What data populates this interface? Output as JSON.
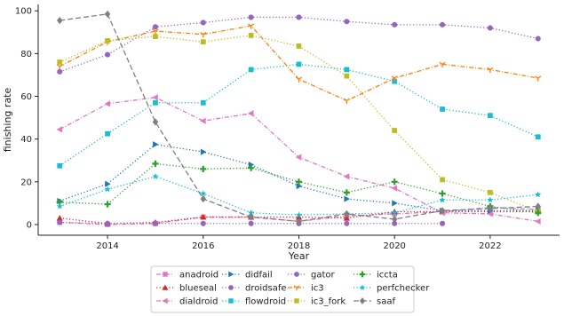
{
  "chart_data": {
    "type": "line",
    "title": "",
    "xlabel": "Year",
    "ylabel": "finishing rate",
    "xlim": [
      2012.55,
      2023.45
    ],
    "ylim": [
      -5,
      103
    ],
    "xticks": [
      2014,
      2016,
      2018,
      2020,
      2022
    ],
    "yticks": [
      0,
      20,
      40,
      60,
      80,
      100
    ],
    "x": [
      2013,
      2014,
      2015,
      2016,
      2017,
      2018,
      2019,
      2020,
      2021,
      2022,
      2023
    ],
    "grid": false,
    "legend_position": "bottom-center",
    "legend_columns": 4,
    "series": [
      {
        "name": "anadroid",
        "color": "#e377c2",
        "marker": "square",
        "linestyle": "dashdot",
        "values": [
          1,
          0,
          0.5,
          3.5,
          3.5,
          1.5,
          4,
          5,
          6,
          8,
          7
        ]
      },
      {
        "name": "blueseal",
        "color": "#d62728",
        "marker": "triangle-up",
        "linestyle": "dotted",
        "values": [
          3,
          0.5,
          1,
          3.5,
          3.5,
          3.5,
          3,
          6,
          6,
          6,
          6
        ]
      },
      {
        "name": "dialdroid",
        "color": "#e377c2",
        "marker": "triangle-left",
        "linestyle": "dashdot",
        "values": [
          44.5,
          56.5,
          59.5,
          48.5,
          52,
          31.5,
          22.5,
          17,
          5.5,
          5,
          1.5
        ]
      },
      {
        "name": "didfail",
        "color": "#1f77b4",
        "marker": "triangle-right",
        "linestyle": "dotted",
        "values": [
          11,
          19,
          37.5,
          34,
          28,
          18,
          12,
          10,
          6.5,
          6.5,
          6.5
        ]
      },
      {
        "name": "droidsafe",
        "color": "#9467bd",
        "marker": "circle",
        "linestyle": "dotted",
        "values": [
          1,
          0.5,
          0.5,
          0.5,
          0.5,
          0.5,
          0.5,
          0.5,
          0.5,
          null,
          null
        ]
      },
      {
        "name": "flowdroid",
        "color": "#17becf",
        "marker": "square",
        "linestyle": "dotted",
        "values": [
          27.5,
          42.5,
          57,
          57,
          72.5,
          75,
          72.5,
          67,
          54,
          51,
          41
        ]
      },
      {
        "name": "gator",
        "color": "#9467bd",
        "marker": "circle",
        "linestyle": "dotted",
        "values": [
          71.5,
          79.5,
          92.5,
          94.5,
          97,
          97,
          95,
          93.5,
          93.5,
          92,
          87
        ]
      },
      {
        "name": "ic3",
        "color": "#ff7f0e",
        "marker": "tri-down",
        "linestyle": "dashdot",
        "values": [
          74,
          85.5,
          90.5,
          89,
          93,
          68,
          58,
          68.5,
          75,
          72.5,
          68.5
        ]
      },
      {
        "name": "ic3_fork",
        "color": "#bcbd22",
        "marker": "square",
        "linestyle": "dotted",
        "values": [
          76,
          86,
          88,
          85.5,
          88.5,
          83.5,
          69.5,
          44,
          21,
          15,
          6
        ]
      },
      {
        "name": "iccta",
        "color": "#2ca02c",
        "marker": "plus",
        "linestyle": "dotted",
        "values": [
          10.5,
          9.5,
          28.5,
          26,
          26.5,
          20,
          15,
          20,
          14.5,
          8.5,
          5.5
        ]
      },
      {
        "name": "perfchecker",
        "color": "#17becf",
        "marker": "star",
        "linestyle": "dotted",
        "values": [
          8.5,
          16.5,
          22.5,
          14.5,
          5.5,
          4.5,
          5,
          5.5,
          11.5,
          11.5,
          14
        ]
      },
      {
        "name": "saaf",
        "color": "#7f7f7f",
        "marker": "diamond",
        "linestyle": "dashed",
        "values": [
          95.5,
          98.5,
          48,
          12,
          3.5,
          1.5,
          5,
          2.5,
          6.5,
          7.5,
          8.5
        ]
      }
    ]
  }
}
